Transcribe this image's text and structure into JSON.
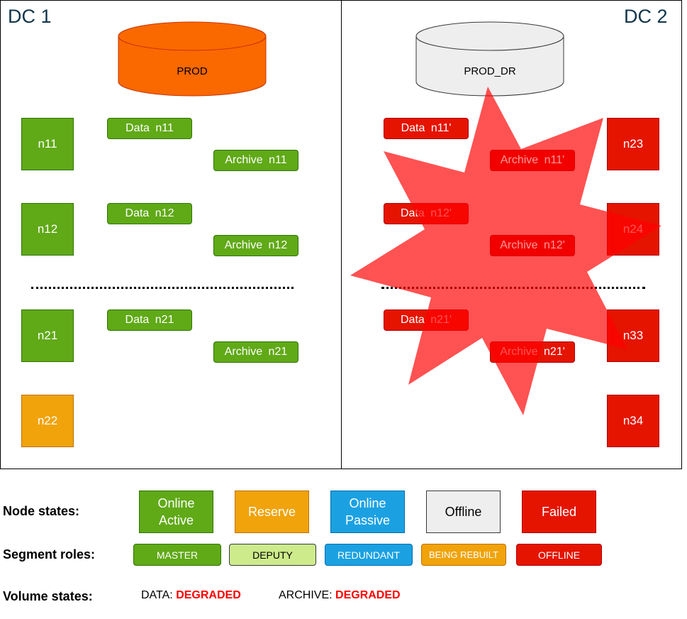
{
  "dc1": {
    "title": "DC 1",
    "volume": "PROD",
    "nodes": [
      "n11",
      "n12",
      "n21",
      "n22"
    ],
    "data_segments": [
      "Data  n11",
      "Data  n12",
      "Data  n21"
    ],
    "archive_segments": [
      "Archive  n11",
      "Archive  n12",
      "Archive  n21"
    ]
  },
  "dc2": {
    "title": "DC 2",
    "volume": "PROD_DR",
    "nodes": [
      "n23",
      "n24",
      "n33",
      "n34"
    ],
    "data_segments": [
      "Data  n11'",
      "Data  n12'",
      "Data  n21'"
    ],
    "archive_segments": [
      "Archive  n11'",
      "Archive  n12'",
      "Archive  n21'"
    ],
    "failure_icon": "explosion-star"
  },
  "colors": {
    "online_active": "#60a917",
    "reserve": "#f0a30a",
    "online_passive": "#1ba1e2",
    "offline": "#eeeeee",
    "failed": "#e51400",
    "deputy": "#cdeb8b",
    "explosion": "#ff0000",
    "degraded": "#ff0000"
  },
  "legend": {
    "node_states_label": "Node states:",
    "node_states": [
      "Online\nActive",
      "Reserve",
      "Online\nPassive",
      "Offline",
      "Failed"
    ],
    "segment_roles_label": "Segment roles:",
    "segment_roles": [
      "MASTER",
      "DEPUTY",
      "REDUNDANT",
      "BEING REBUILT",
      "OFFLINE"
    ],
    "volume_states_label": "Volume states:",
    "data_label": "DATA: ",
    "data_state": "DEGRADED",
    "archive_label": "ARCHIVE: ",
    "archive_state": "DEGRADED"
  }
}
